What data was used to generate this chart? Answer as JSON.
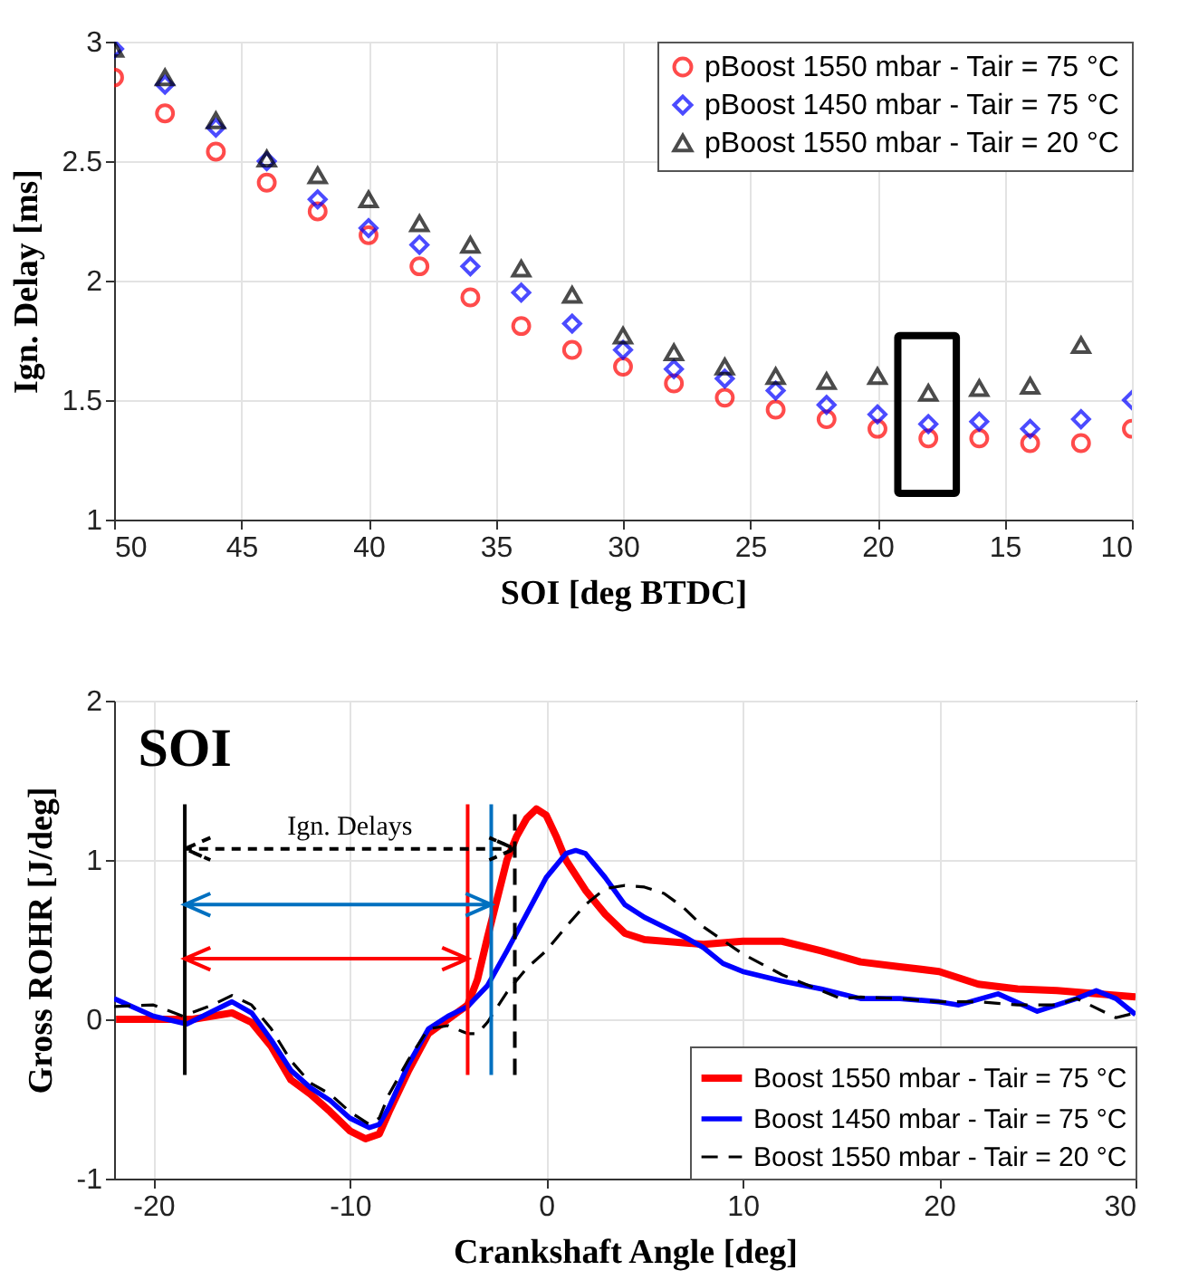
{
  "chart_data": [
    {
      "type": "scatter",
      "xlabel": "SOI [deg BTDC]",
      "ylabel": "Ign. Delay [ms]",
      "xlim": [
        50,
        10
      ],
      "xticks": [
        50,
        45,
        40,
        35,
        30,
        25,
        20,
        15,
        10
      ],
      "ylim": [
        1,
        3
      ],
      "yticks": [
        1,
        1.5,
        2,
        2.5,
        3
      ],
      "grid": true,
      "legend": "top right",
      "x": [
        50,
        48,
        46,
        44,
        42,
        40,
        38,
        36,
        34,
        32,
        30,
        28,
        26,
        24,
        22,
        20,
        18,
        16,
        14,
        12,
        10
      ],
      "series": [
        {
          "name": "pBoost 1550 mbar - Tair = 75 °C",
          "color": "#ff0000",
          "marker": "circle",
          "values": [
            2.85,
            2.7,
            2.54,
            2.41,
            2.29,
            2.19,
            2.06,
            1.93,
            1.81,
            1.71,
            1.64,
            1.57,
            1.51,
            1.46,
            1.42,
            1.38,
            1.34,
            1.34,
            1.32,
            1.32,
            1.38
          ]
        },
        {
          "name": "pBoost 1450 mbar - Tair = 75 °C",
          "color": "#0000ff",
          "marker": "diamond",
          "values": [
            2.97,
            2.82,
            2.64,
            2.5,
            2.34,
            2.22,
            2.15,
            2.06,
            1.95,
            1.82,
            1.71,
            1.63,
            1.59,
            1.54,
            1.48,
            1.44,
            1.4,
            1.41,
            1.38,
            1.42,
            1.5
          ]
        },
        {
          "name": "pBoost 1550 mbar - Tair = 20 °C",
          "color": "#000000",
          "marker": "triangle",
          "values": [
            2.97,
            2.85,
            2.67,
            2.51,
            2.44,
            2.34,
            2.24,
            2.15,
            2.05,
            1.94,
            1.77,
            1.7,
            1.64,
            1.6,
            1.58,
            1.6,
            1.53,
            1.55,
            1.56,
            1.73,
            null
          ]
        }
      ]
    },
    {
      "type": "line",
      "xlabel": "Crankshaft Angle [deg]",
      "ylabel": "Gross ROHR [J/deg]",
      "xlim": [
        -22,
        30
      ],
      "xticks": [
        -20,
        -10,
        0,
        10,
        20,
        30
      ],
      "ylim": [
        -1,
        2
      ],
      "yticks": [
        -1,
        0,
        1,
        2
      ],
      "grid": true,
      "legend": "bottom right",
      "series": [
        {
          "name": "Boost 1550 mbar - Tair = 75 °C",
          "color": "#ff0000",
          "line_style": "solid",
          "x": [
            -21.9,
            -18,
            -16,
            -15,
            -14,
            -13,
            -12,
            -11,
            -10,
            -9.2,
            -8.5,
            -8,
            -7,
            -6,
            -5,
            -4,
            -3.5,
            -3,
            -2,
            -1.5,
            -1,
            -0.5,
            0,
            0.5,
            1,
            2,
            3,
            4,
            5,
            6,
            8,
            10,
            12,
            14,
            16,
            18,
            20,
            22,
            24,
            26,
            28,
            30
          ],
          "values": [
            0,
            0,
            0.04,
            -0.02,
            -0.17,
            -0.38,
            -0.47,
            -0.58,
            -0.7,
            -0.75,
            -0.72,
            -0.58,
            -0.32,
            -0.09,
            0,
            0.09,
            0.25,
            0.51,
            1.0,
            1.15,
            1.26,
            1.32,
            1.28,
            1.15,
            1.0,
            0.81,
            0.66,
            0.54,
            0.5,
            0.49,
            0.47,
            0.49,
            0.49,
            0.43,
            0.36,
            0.33,
            0.3,
            0.22,
            0.19,
            0.18,
            0.16,
            0.14
          ]
        },
        {
          "name": "Boost 1450 mbar - Tair = 75 °C",
          "color": "#0000ff",
          "line_style": "solid",
          "x": [
            -22,
            -20,
            -18.3,
            -17,
            -16,
            -15,
            -14,
            -13,
            -12,
            -11,
            -10,
            -9,
            -8.5,
            -8,
            -7,
            -6,
            -5,
            -4,
            -3,
            -2,
            -1,
            0,
            1,
            1.5,
            2,
            3,
            4,
            5,
            6,
            7,
            8,
            9,
            10,
            12,
            14,
            16,
            18,
            20,
            21,
            23,
            25,
            27,
            28,
            29,
            30
          ],
          "values": [
            0.13,
            0.02,
            -0.03,
            0.05,
            0.11,
            0.04,
            -0.13,
            -0.32,
            -0.43,
            -0.51,
            -0.62,
            -0.68,
            -0.66,
            -0.55,
            -0.28,
            -0.06,
            0.02,
            0.08,
            0.21,
            0.43,
            0.66,
            0.89,
            1.04,
            1.06,
            1.04,
            0.89,
            0.72,
            0.64,
            0.58,
            0.52,
            0.45,
            0.35,
            0.3,
            0.24,
            0.19,
            0.13,
            0.13,
            0.11,
            0.09,
            0.16,
            0.05,
            0.13,
            0.18,
            0.13,
            0.03
          ]
        },
        {
          "name": "Boost 1550 mbar - Tair = 20 °C",
          "color": "#000000",
          "line_style": "dashed",
          "x": [
            -22,
            -20,
            -18.5,
            -17,
            -16,
            -15,
            -14,
            -13,
            -12,
            -11,
            -10,
            -9,
            -8.5,
            -8,
            -7,
            -6,
            -5,
            -4,
            -3.5,
            -3,
            -2,
            -1,
            0,
            1,
            2,
            3,
            4,
            5,
            6,
            7,
            8,
            10,
            12,
            14,
            15,
            16,
            18,
            20,
            22,
            24,
            26,
            27,
            28,
            29,
            30
          ],
          "values": [
            0.08,
            0.09,
            0.02,
            0.09,
            0.15,
            0.09,
            -0.06,
            -0.26,
            -0.4,
            -0.47,
            -0.58,
            -0.66,
            -0.62,
            -0.47,
            -0.25,
            -0.06,
            -0.04,
            -0.09,
            -0.09,
            -0.02,
            0.17,
            0.32,
            0.43,
            0.58,
            0.72,
            0.82,
            0.84,
            0.83,
            0.79,
            0.7,
            0.58,
            0.41,
            0.28,
            0.18,
            0.13,
            0.14,
            0.13,
            0.11,
            0.11,
            0.09,
            0.09,
            0.13,
            0.07,
            0.01,
            0.04
          ]
        }
      ],
      "ref_lines": [
        {
          "axis": "x",
          "value": -18.4,
          "color": "#000000",
          "line_style": "solid",
          "label": "SOI"
        },
        {
          "axis": "x",
          "value": -4.0,
          "color": "#ff0000",
          "line_style": "solid"
        },
        {
          "axis": "x",
          "value": -2.8,
          "color": "#0070c0",
          "line_style": "solid"
        },
        {
          "axis": "x",
          "value": -1.6,
          "color": "#000000",
          "line_style": "dashed"
        }
      ],
      "annotations": [
        "Ign. Delays"
      ]
    }
  ]
}
